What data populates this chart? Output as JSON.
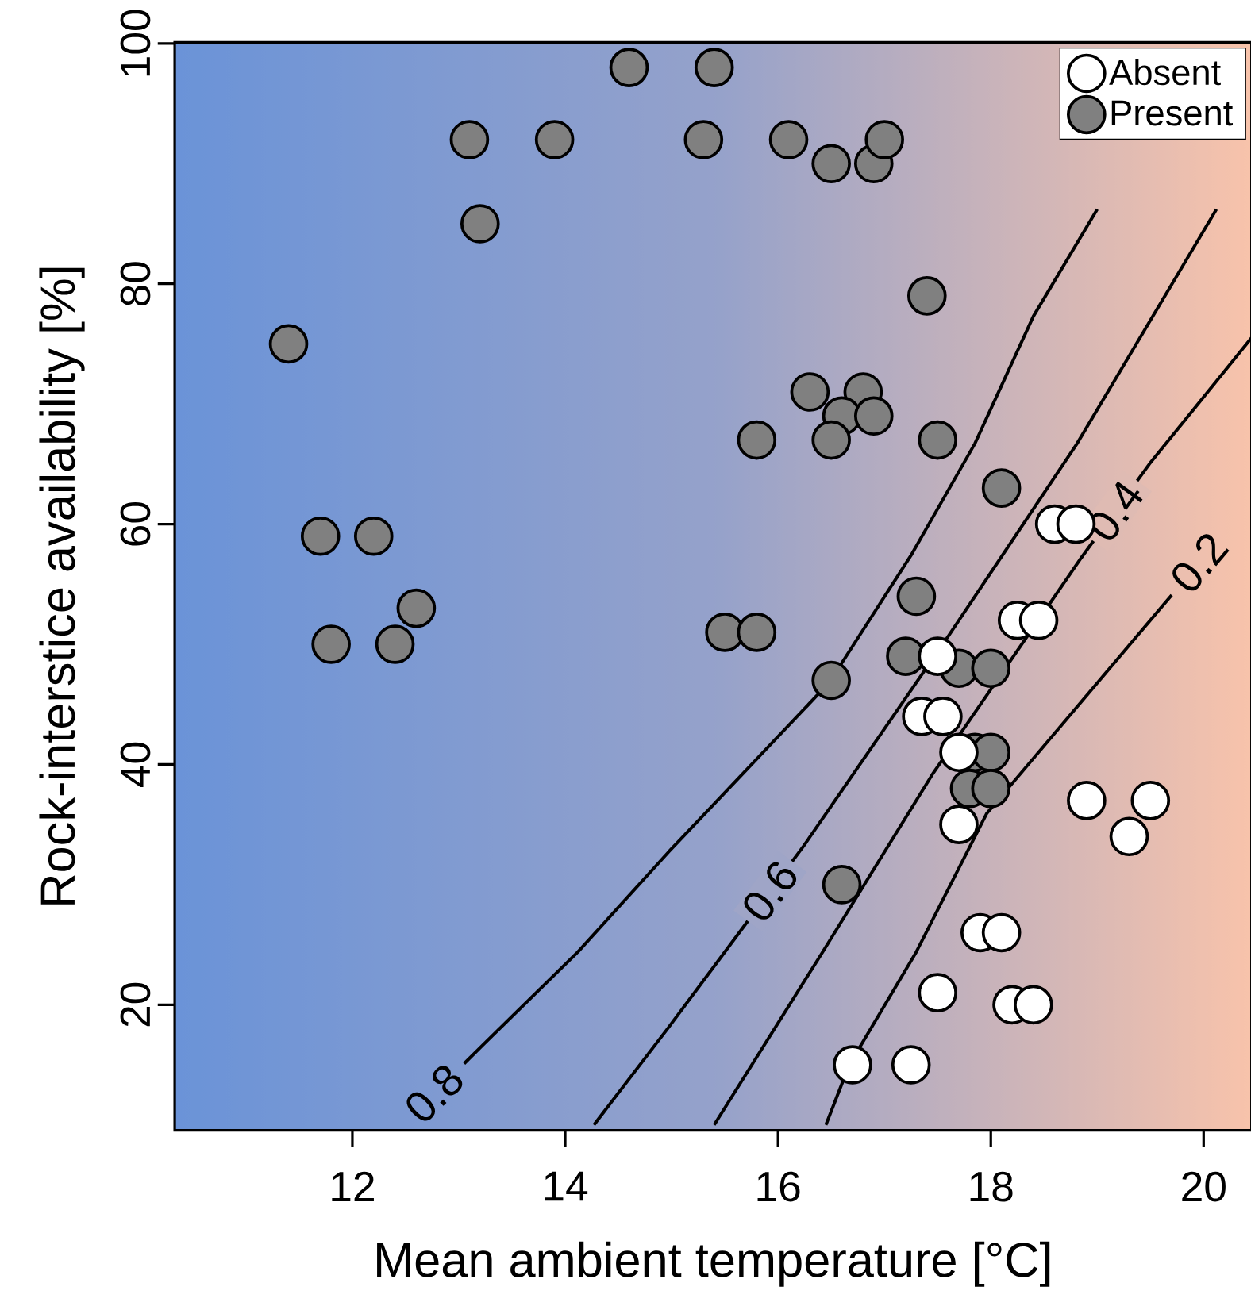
{
  "chart_data": {
    "type": "scatter",
    "xlabel": "Mean ambient temperature [°C]",
    "ylabel": "Rock-interstice availability [%]",
    "xlim": [
      10.33,
      20.45
    ],
    "ylim": [
      9.55,
      100.1
    ],
    "xticks": [
      12,
      14,
      16,
      18,
      20
    ],
    "yticks": [
      20,
      40,
      60,
      80,
      100
    ],
    "legend": "top right",
    "series": [
      {
        "name": "Absent",
        "marker": "circle",
        "color": "#ffffff",
        "x": [
          18.6,
          18.8,
          18.25,
          18.45,
          17.5,
          17.35,
          17.55,
          17.7,
          17.7,
          18.9,
          19.5,
          19.3,
          17.9,
          18.1,
          17.5,
          18.2,
          18.4,
          16.7,
          17.25
        ],
        "values": [
          60,
          60,
          52,
          52,
          49,
          44,
          44,
          41,
          35,
          37,
          37,
          34,
          26,
          26,
          21,
          20,
          20,
          15,
          15
        ]
      },
      {
        "name": "Present",
        "marker": "circle",
        "color": "#808080",
        "x": [
          14.6,
          15.4,
          13.1,
          13.9,
          15.3,
          13.2,
          11.4,
          11.7,
          12.2,
          12.6,
          11.8,
          12.4,
          15.5,
          15.8,
          16.1,
          16.5,
          16.9,
          17.0,
          17.4,
          16.3,
          16.8,
          16.6,
          16.9,
          15.8,
          16.5,
          17.5,
          18.1,
          17.3,
          16.5,
          17.2,
          17.7,
          18.0,
          17.85,
          18.0,
          17.8,
          18.0,
          16.6
        ],
        "values": [
          98,
          98,
          92,
          92,
          92,
          85,
          75,
          59,
          59,
          53,
          50,
          50,
          51,
          51,
          92,
          90,
          90,
          92,
          79,
          71,
          71,
          69,
          69,
          67,
          67,
          67,
          63,
          54,
          47,
          49,
          48,
          48,
          41,
          41,
          38,
          38,
          30
        ]
      },
      {
        "name": "0.8",
        "type": "line",
        "marker": "none",
        "color": "#000000",
        "x": [
          13.05,
          13.22,
          14.12,
          14.97,
          16.48,
          17.25,
          17.85,
          18.4,
          19.0
        ],
        "values": [
          15.1,
          16.6,
          24.4,
          32.7,
          46.8,
          57.4,
          66.7,
          77.3,
          86.2
        ]
      },
      {
        "name": "0.6",
        "type": "line",
        "marker": "none",
        "color": "#000000",
        "x": [
          14.27,
          14.97,
          15.61,
          16.24,
          17.61,
          18.81,
          20.12
        ],
        "values": [
          10,
          18.1,
          25.7,
          33.2,
          50.8,
          66.7,
          86.2
        ]
      },
      {
        "name": "0.4",
        "type": "line",
        "marker": "none",
        "color": "#000000",
        "x": [
          15.4,
          16.42,
          17.46,
          18.85,
          19.49,
          20.45
        ],
        "values": [
          10,
          24.4,
          39.3,
          57.2,
          65,
          75.5
        ]
      },
      {
        "name": "0.2",
        "type": "line",
        "marker": "none",
        "color": "#000000",
        "x": [
          16.45,
          16.67,
          17.3,
          17.96,
          19.7
        ],
        "values": [
          10,
          15,
          24.4,
          35.9,
          54.1
        ]
      }
    ]
  }
}
